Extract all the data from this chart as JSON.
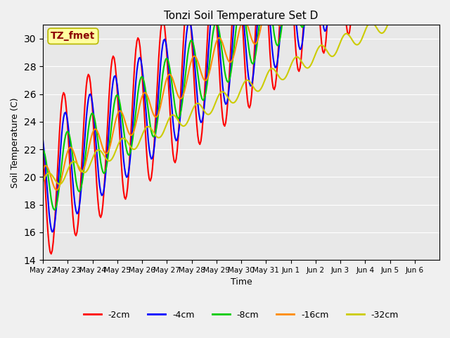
{
  "title": "Tonzi Soil Temperature Set D",
  "xlabel": "Time",
  "ylabel": "Soil Temperature (C)",
  "ylim": [
    14,
    31
  ],
  "yticks": [
    14,
    16,
    18,
    20,
    22,
    24,
    26,
    28,
    30
  ],
  "annotation": "TZ_fmet",
  "annotation_color": "#8B0000",
  "annotation_bg": "#FFFFA0",
  "annotation_border": "#B8B800",
  "x_labels": [
    "May 22",
    "May 23",
    "May 24",
    "May 25",
    "May 26",
    "May 27",
    "May 28",
    "May 29",
    "May 30",
    "May 31",
    "Jun 1",
    "Jun 2",
    "Jun 3",
    "Jun 4",
    "Jun 5",
    "Jun 6"
  ],
  "series": [
    {
      "label": "-2cm",
      "color": "#FF0000",
      "linewidth": 1.5
    },
    {
      "label": "-4cm",
      "color": "#0000FF",
      "linewidth": 1.5
    },
    {
      "label": "-8cm",
      "color": "#00CC00",
      "linewidth": 1.5
    },
    {
      "label": "-16cm",
      "color": "#FF8C00",
      "linewidth": 1.5
    },
    {
      "label": "-32cm",
      "color": "#CCCC00",
      "linewidth": 1.5
    }
  ],
  "plot_bg": "#E8E8E8",
  "fig_bg": "#F0F0F0",
  "n_points": 384,
  "days": 16,
  "base_temps": [
    19.5,
    19.5,
    19.5,
    19.5,
    19.5
  ],
  "amplitudes": [
    5.5,
    4.0,
    2.5,
    1.2,
    0.6
  ],
  "trend": [
    0.055,
    0.055,
    0.055,
    0.055,
    0.035
  ],
  "phase_shifts_hours": [
    14.0,
    15.5,
    17.5,
    20.0,
    23.0
  ],
  "period_hours": 24
}
